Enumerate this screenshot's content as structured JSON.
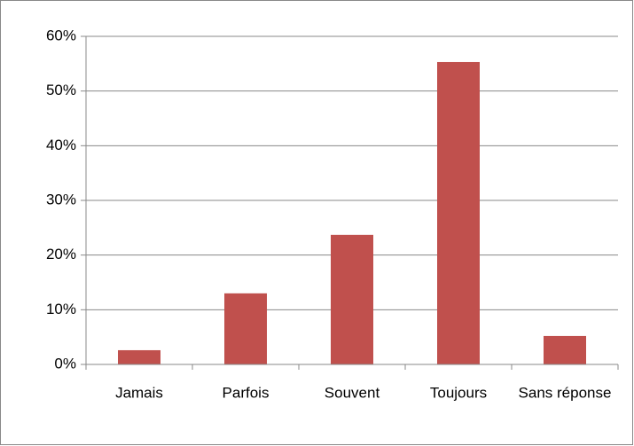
{
  "chart_data": {
    "type": "bar",
    "categories": [
      "Jamais",
      "Parfois",
      "Souvent",
      "Toujours",
      "Sans réponse"
    ],
    "values": [
      2.6,
      13.0,
      23.7,
      55.3,
      5.2
    ],
    "color": "#c0504d",
    "ylim": [
      0,
      60
    ],
    "yticks": [
      {
        "value": 0,
        "label": "0%"
      },
      {
        "value": 10,
        "label": "10%"
      },
      {
        "value": 20,
        "label": "20%"
      },
      {
        "value": 30,
        "label": "30%"
      },
      {
        "value": 40,
        "label": "40%"
      },
      {
        "value": 50,
        "label": "50%"
      },
      {
        "value": 60,
        "label": "60%"
      }
    ],
    "grid": true
  }
}
